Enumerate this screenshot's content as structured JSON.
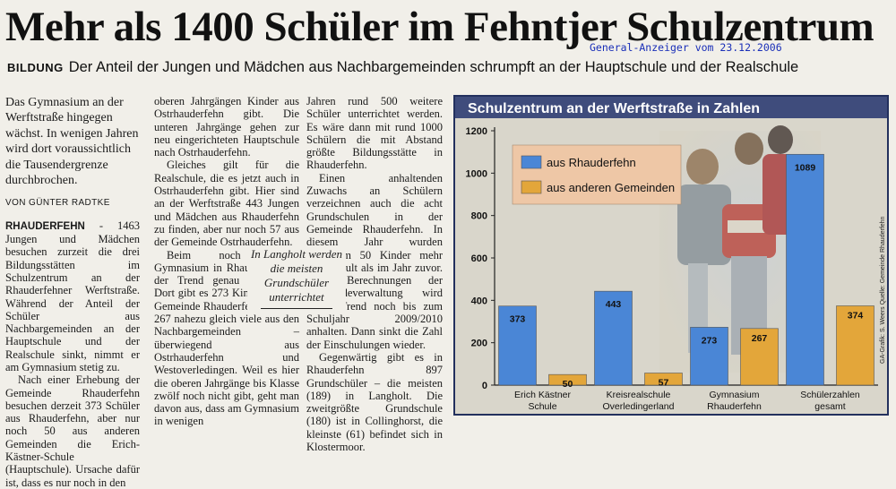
{
  "headline": "Mehr als 1400 Schüler im Fehntjer Schulzentrum",
  "source_stamp": "General-Anzeiger vom 23.12.2006",
  "kicker": "BILDUNG",
  "subheadline": "Der Anteil der Jungen und Mädchen aus Nachbargemeinden schrumpft an der Hauptschule und der Realschule",
  "lede": "Das Gymnasium an der Werftstraße hingegen wächst. In wenigen Jahren wird dort voraussichtlich die Tausendergrenze durchbrochen.",
  "byline": "VON GÜNTER RADTKE",
  "dateline": "RHAUDERFEHN",
  "col1_body_1": " - 1463 Jungen und Mädchen besuchen zurzeit die drei Bildungsstätten im Schulzentrum an der Rhauderfehner Werftstraße. Während der Anteil der Schüler aus Nachbargemeinden an der Hauptschule und der Realschule sinkt, nimmt er am Gymnasium stetig zu.",
  "col1_body_2": "Nach einer Erhebung der Gemeinde Rhauderfehn besuchen derzeit 373 Schüler aus Rhauderfehn, aber nur noch 50 aus anderen Gemeinden die Erich-Kästner-Schule (Hauptschule). Ursache dafür ist, dass es nur noch in den",
  "col2_p1": "oberen Jahrgängen Kinder aus Ostrhauderfehn gibt. Die unteren Jahrgänge gehen zur neu eingerichteten Hauptschule nach Ostrhauderfehn.",
  "col2_p2": "Gleiches gilt für die Realschule, die es jetzt auch in Ostrhauderfehn gibt. Hier sind an der Werftstraße 443 Jungen und Mädchen aus Rhauderfehn zu finden, aber nur noch 57 aus der Gemeinde Ostrhauderfehn.",
  "col2_p3": "Beim noch jungen Gymnasium in Rhauderfehn ist der Trend genau umgekehrt. Dort gibt es 273 Kinder aus der Gemeinde Rhauderfehn und mit 267 nahezu gleich viele aus den Nachbargemeinden – überwiegend aus Ostrhauderfehn und Westoverledingen. Weil es hier die oberen Jahrgänge bis Klasse zwölf noch nicht gibt, geht man davon aus, dass am Gymnasium in wenigen",
  "col3_p1": "Jahren rund 500 weitere Schüler unterrichtet werden. Es wäre dann mit rund 1000 Schülern die mit Abstand größte Bildungsstätte in Rhauderfehn.",
  "col3_p2": "Einen anhaltenden Zuwachs an Schülern verzeichnen auch die acht Grundschulen in der Gemeinde Rhauderfehn. In diesem Jahr wurden wiederum 50 Kinder mehr eingeschult als im Jahr zuvor. Nach Berechnungen der Gemeindeverwaltung wird dieser Trend noch bis zum Schuljahr 2009/2010 anhalten. Dann sinkt die Zahl der Einschulungen wieder.",
  "col3_p3": "Gegenwärtig gibt es in Rhauderfehn 897 Grundschüler – die meisten (189) in Langholt. Die zweitgrößte Grundschule (180) ist in Collinghorst, die kleinste (61) befindet sich in Klostermoor.",
  "pullquote": "In Langholt werden die meisten Grundschüler unterrichtet",
  "colors": {
    "rhauderfehn": "#4a86d6",
    "andere": "#e3a63a",
    "title_bar": "#3f4c7c"
  },
  "chart_data": {
    "type": "bar",
    "title": "Schulzentrum an der Werftstraße in Zahlen",
    "credit": "GA-Grafik: S. Weers   Quelle: Gemeinde Rhauderfehn",
    "categories": [
      "Erich Kästner Schule",
      "Kreisrealschule Overledingerland",
      "Gymnasium Rhauderfehn",
      "Schülerzahlen gesamt"
    ],
    "category_lines": [
      [
        "Erich Kästner",
        "Schule"
      ],
      [
        "Kreisrealschule",
        "Overledingerland"
      ],
      [
        "Gymnasium",
        "Rhauderfehn"
      ],
      [
        "Schülerzahlen",
        "gesamt"
      ]
    ],
    "series": [
      {
        "name": "aus Rhauderfehn",
        "values": [
          373,
          443,
          273,
          1089
        ]
      },
      {
        "name": "aus anderen Gemeinden",
        "values": [
          50,
          57,
          267,
          374
        ]
      }
    ],
    "yticks": [
      0,
      200,
      400,
      600,
      800,
      1000,
      1200
    ],
    "ylim": [
      0,
      1200
    ],
    "legend_position": "top-left",
    "grid": false
  }
}
